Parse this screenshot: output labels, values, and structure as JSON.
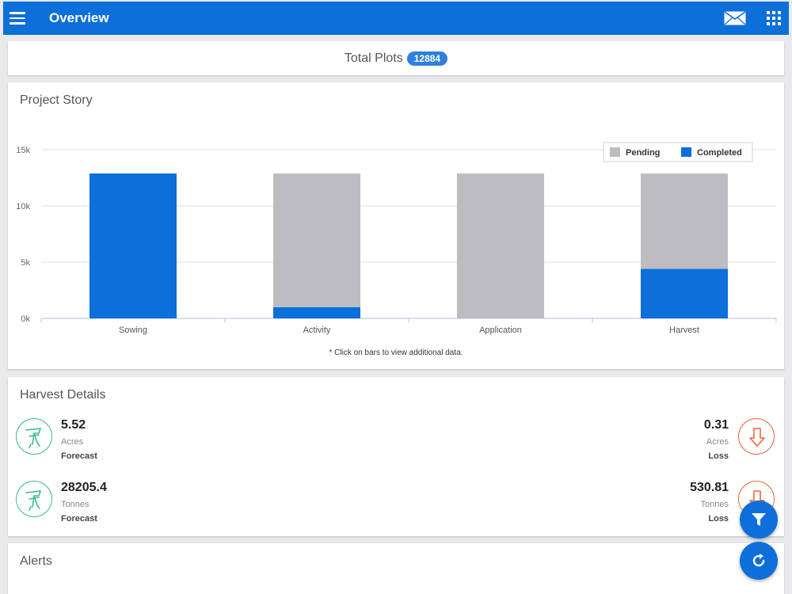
{
  "header": {
    "title": "Overview",
    "menu_icon": "hamburger-icon",
    "mail_icon": "mail-icon",
    "apps_icon": "apps-grid-icon"
  },
  "summary": {
    "label": "Total Plots",
    "count": "12884"
  },
  "project_story": {
    "title": "Project Story",
    "note": "* Click on bars to view additional data."
  },
  "chart_data": {
    "type": "bar",
    "stacked": true,
    "categories": [
      "Sowing",
      "Activity",
      "Application",
      "Harvest"
    ],
    "series": [
      {
        "name": "Completed",
        "color": "#0d6fd9",
        "values": [
          12884,
          1000,
          0,
          4400
        ]
      },
      {
        "name": "Pending",
        "color": "#bdbcc0",
        "values": [
          0,
          11884,
          12884,
          8484
        ]
      }
    ],
    "legend_order": [
      "Pending",
      "Completed"
    ],
    "yticks": [
      0,
      5000,
      10000,
      15000
    ],
    "ytick_labels": [
      "0k",
      "5k",
      "10k",
      "15k"
    ],
    "ylim": [
      0,
      15000
    ],
    "grid": true,
    "legend_position": "top-right"
  },
  "harvest": {
    "title": "Harvest Details",
    "items": [
      {
        "value": "5.52",
        "unit": "Acres",
        "label": "Forecast",
        "icon": "harvester-icon"
      },
      {
        "value": "0.31",
        "unit": "Acres",
        "label": "Loss",
        "icon": "down-arrow-icon"
      },
      {
        "value": "28205.4",
        "unit": "Tonnes",
        "label": "Forecast",
        "icon": "harvester-icon"
      },
      {
        "value": "530.81",
        "unit": "Tonnes",
        "label": "Loss",
        "icon": "down-arrow-icon"
      }
    ]
  },
  "alerts": {
    "title": "Alerts"
  },
  "fabs": {
    "filter_icon": "filter-icon",
    "refresh_icon": "refresh-icon"
  }
}
